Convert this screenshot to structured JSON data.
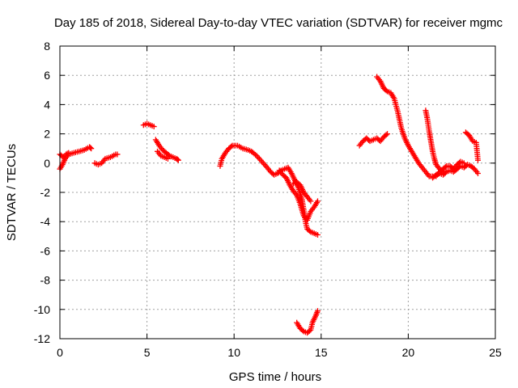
{
  "chart_data": {
    "type": "scatter",
    "title": "Day 185 of 2018, Sidereal Day-to-day VTEC variation (SDTVAR) for receiver mgmc",
    "xlabel": "GPS time / hours",
    "ylabel": "SDTVAR / TECUs",
    "xlim": [
      0,
      25
    ],
    "ylim": [
      -12,
      8
    ],
    "xticks": [
      0,
      5,
      10,
      15,
      20,
      25
    ],
    "yticks": [
      -12,
      -10,
      -8,
      -6,
      -4,
      -2,
      0,
      2,
      4,
      6,
      8
    ],
    "grid": true,
    "marker": "+",
    "color": "#ff0000",
    "series": [
      {
        "name": "SDTVAR",
        "segments": [
          [
            [
              0.0,
              -0.4
            ],
            [
              0.15,
              -0.1
            ],
            [
              0.3,
              0.3
            ],
            [
              0.5,
              0.6
            ],
            [
              0.8,
              0.7
            ],
            [
              1.1,
              0.8
            ],
            [
              1.4,
              0.9
            ],
            [
              1.7,
              1.1
            ],
            [
              1.8,
              1.0
            ]
          ],
          [
            [
              0.0,
              0.6
            ],
            [
              0.2,
              0.4
            ],
            [
              0.35,
              0.6
            ],
            [
              0.5,
              0.7
            ]
          ],
          [
            [
              2.0,
              0.0
            ],
            [
              2.2,
              -0.1
            ],
            [
              2.4,
              0.0
            ],
            [
              2.6,
              0.3
            ],
            [
              2.9,
              0.4
            ],
            [
              3.2,
              0.6
            ],
            [
              3.3,
              0.6
            ]
          ],
          [
            [
              4.8,
              2.6
            ],
            [
              5.0,
              2.7
            ],
            [
              5.2,
              2.6
            ],
            [
              5.4,
              2.5
            ]
          ],
          [
            [
              5.5,
              1.6
            ],
            [
              5.7,
              1.2
            ],
            [
              5.9,
              0.9
            ],
            [
              6.1,
              0.7
            ],
            [
              6.3,
              0.5
            ],
            [
              6.5,
              0.4
            ],
            [
              6.7,
              0.3
            ],
            [
              6.8,
              0.2
            ]
          ],
          [
            [
              5.6,
              0.8
            ],
            [
              5.8,
              0.5
            ],
            [
              6.0,
              0.4
            ],
            [
              6.2,
              0.3
            ]
          ],
          [
            [
              9.2,
              -0.2
            ],
            [
              9.3,
              0.3
            ],
            [
              9.5,
              0.7
            ],
            [
              9.7,
              1.0
            ],
            [
              9.9,
              1.2
            ],
            [
              10.2,
              1.2
            ],
            [
              10.5,
              1.0
            ],
            [
              10.8,
              0.9
            ],
            [
              11.0,
              0.8
            ],
            [
              11.3,
              0.5
            ],
            [
              11.6,
              0.1
            ],
            [
              11.9,
              -0.3
            ],
            [
              12.1,
              -0.6
            ],
            [
              12.3,
              -0.8
            ],
            [
              12.5,
              -0.7
            ],
            [
              12.7,
              -0.5
            ],
            [
              12.9,
              -0.4
            ],
            [
              13.1,
              -0.3
            ],
            [
              13.3,
              -0.7
            ],
            [
              13.5,
              -1.2
            ],
            [
              13.7,
              -1.7
            ],
            [
              13.9,
              -2.5
            ],
            [
              14.0,
              -3.2
            ],
            [
              14.1,
              -4.0
            ],
            [
              14.2,
              -4.5
            ],
            [
              14.4,
              -4.7
            ],
            [
              14.6,
              -4.8
            ],
            [
              14.8,
              -4.9
            ]
          ],
          [
            [
              12.6,
              -0.5
            ],
            [
              12.8,
              -0.8
            ],
            [
              13.0,
              -1.0
            ],
            [
              13.2,
              -1.5
            ],
            [
              13.4,
              -1.9
            ],
            [
              13.6,
              -2.2
            ],
            [
              13.8,
              -2.8
            ],
            [
              14.0,
              -3.6
            ],
            [
              14.2,
              -3.9
            ],
            [
              14.4,
              -3.3
            ],
            [
              14.6,
              -3.0
            ],
            [
              14.8,
              -2.6
            ]
          ],
          [
            [
              13.4,
              -1.4
            ],
            [
              13.6,
              -1.3
            ],
            [
              13.8,
              -1.5
            ],
            [
              14.0,
              -2.0
            ],
            [
              14.2,
              -2.3
            ],
            [
              14.4,
              -2.6
            ]
          ],
          [
            [
              13.6,
              -10.9
            ],
            [
              13.8,
              -11.3
            ],
            [
              14.0,
              -11.5
            ],
            [
              14.2,
              -11.6
            ],
            [
              14.4,
              -11.4
            ],
            [
              14.5,
              -10.9
            ],
            [
              14.7,
              -10.4
            ],
            [
              14.8,
              -10.1
            ]
          ],
          [
            [
              17.2,
              1.2
            ],
            [
              17.4,
              1.5
            ],
            [
              17.6,
              1.7
            ],
            [
              17.8,
              1.5
            ],
            [
              18.0,
              1.6
            ],
            [
              18.2,
              1.7
            ],
            [
              18.4,
              1.5
            ],
            [
              18.6,
              1.8
            ],
            [
              18.8,
              2.0
            ]
          ],
          [
            [
              18.2,
              5.9
            ],
            [
              18.4,
              5.6
            ],
            [
              18.6,
              5.1
            ],
            [
              18.8,
              4.9
            ],
            [
              19.0,
              4.8
            ],
            [
              19.2,
              4.4
            ],
            [
              19.4,
              3.5
            ],
            [
              19.6,
              2.4
            ],
            [
              19.8,
              1.7
            ],
            [
              20.0,
              1.2
            ],
            [
              20.2,
              0.8
            ],
            [
              20.4,
              0.4
            ],
            [
              20.6,
              0.0
            ],
            [
              20.8,
              -0.3
            ],
            [
              21.0,
              -0.6
            ],
            [
              21.2,
              -0.9
            ],
            [
              21.4,
              -0.9
            ]
          ],
          [
            [
              21.0,
              3.6
            ],
            [
              21.1,
              3.0
            ],
            [
              21.2,
              2.2
            ],
            [
              21.3,
              1.5
            ],
            [
              21.4,
              0.8
            ],
            [
              21.5,
              0.3
            ],
            [
              21.6,
              -0.1
            ],
            [
              21.8,
              -0.4
            ],
            [
              22.0,
              -0.6
            ]
          ],
          [
            [
              21.4,
              -1.0
            ],
            [
              21.6,
              -0.8
            ],
            [
              21.8,
              -0.7
            ],
            [
              22.0,
              -0.8
            ],
            [
              22.2,
              -0.6
            ],
            [
              22.4,
              -0.5
            ],
            [
              22.6,
              -0.6
            ],
            [
              22.8,
              -0.4
            ],
            [
              23.0,
              -0.2
            ],
            [
              23.2,
              -0.3
            ],
            [
              23.4,
              -0.1
            ],
            [
              23.6,
              -0.2
            ],
            [
              23.8,
              -0.4
            ],
            [
              24.0,
              -0.7
            ]
          ],
          [
            [
              21.6,
              -0.9
            ],
            [
              21.8,
              -0.6
            ],
            [
              22.0,
              -0.4
            ],
            [
              22.2,
              -0.2
            ],
            [
              22.4,
              -0.2
            ],
            [
              22.6,
              -0.4
            ],
            [
              22.8,
              -0.1
            ],
            [
              23.0,
              0.1
            ],
            [
              23.2,
              0.0
            ]
          ],
          [
            [
              23.3,
              2.1
            ],
            [
              23.5,
              1.9
            ],
            [
              23.7,
              1.5
            ],
            [
              23.9,
              1.4
            ],
            [
              24.0,
              0.2
            ]
          ]
        ]
      }
    ]
  }
}
